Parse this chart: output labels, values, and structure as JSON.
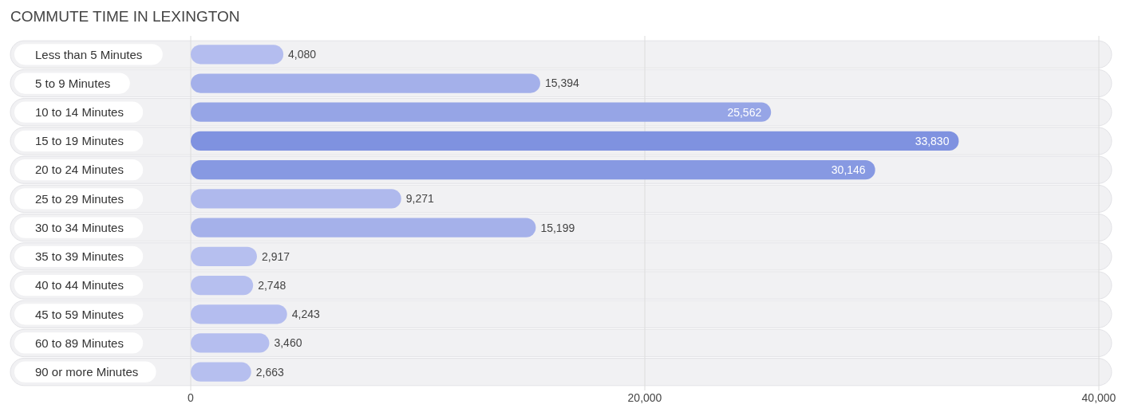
{
  "chart_data": {
    "type": "bar",
    "orientation": "horizontal",
    "title": "COMMUTE TIME IN LEXINGTON",
    "categories": [
      "Less than 5 Minutes",
      "5 to 9 Minutes",
      "10 to 14 Minutes",
      "15 to 19 Minutes",
      "20 to 24 Minutes",
      "25 to 29 Minutes",
      "30 to 34 Minutes",
      "35 to 39 Minutes",
      "40 to 44 Minutes",
      "45 to 59 Minutes",
      "60 to 89 Minutes",
      "90 or more Minutes"
    ],
    "values": [
      4080,
      15394,
      25562,
      33830,
      30146,
      9271,
      15199,
      2917,
      2748,
      4243,
      3460,
      2663
    ],
    "colors": [
      "#b4bdef",
      "#a4b0ea",
      "#96a5e6",
      "#7f92e0",
      "#8799e2",
      "#afb9ed",
      "#a5b1ea",
      "#b6bfef",
      "#b6bfef",
      "#b4bdef",
      "#b5beef",
      "#b6bfef"
    ],
    "xlim": [
      0,
      40000
    ],
    "xticks": [
      {
        "value": 0,
        "label": "0"
      },
      {
        "value": 20000,
        "label": "20,000"
      },
      {
        "value": 40000,
        "label": "40,000"
      }
    ],
    "value_labels": [
      "4,080",
      "15,394",
      "25,562",
      "33,830",
      "30,146",
      "9,271",
      "15,199",
      "2,917",
      "2,748",
      "4,243",
      "3,460",
      "2,663"
    ],
    "grid": "x"
  }
}
